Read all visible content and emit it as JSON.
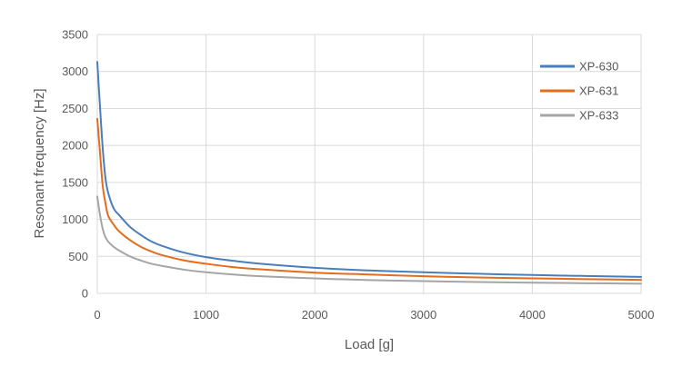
{
  "chart_data": {
    "type": "line",
    "title": "",
    "xlabel": "Load [g]",
    "ylabel": "Resonant frequency [Hz]",
    "xlim": [
      0,
      5000
    ],
    "ylim": [
      0,
      3500
    ],
    "x_ticks": [
      0,
      1000,
      2000,
      3000,
      4000,
      5000
    ],
    "y_ticks": [
      0,
      500,
      1000,
      1500,
      2000,
      2500,
      3000,
      3500
    ],
    "grid": true,
    "legend_position": "top-right",
    "x": [
      0,
      25,
      50,
      75,
      100,
      150,
      200,
      300,
      400,
      500,
      600,
      800,
      1000,
      1250,
      1500,
      2000,
      2500,
      3000,
      3500,
      4000,
      4500,
      5000
    ],
    "series": [
      {
        "name": "XP-630",
        "color": "#4a7ebb",
        "values": [
          3130,
          2520,
          1960,
          1560,
          1360,
          1150,
          1060,
          900,
          790,
          700,
          640,
          550,
          490,
          440,
          400,
          345,
          310,
          285,
          265,
          248,
          235,
          222
        ]
      },
      {
        "name": "XP-631",
        "color": "#e36c1d",
        "values": [
          2360,
          1900,
          1450,
          1220,
          1050,
          930,
          840,
          720,
          630,
          565,
          515,
          445,
          400,
          355,
          325,
          280,
          255,
          232,
          215,
          203,
          192,
          182
        ]
      },
      {
        "name": "XP-633",
        "color": "#a5a5a5",
        "values": [
          1310,
          1060,
          870,
          760,
          700,
          630,
          580,
          500,
          445,
          400,
          370,
          320,
          285,
          255,
          232,
          202,
          180,
          165,
          153,
          145,
          137,
          130
        ]
      }
    ]
  }
}
